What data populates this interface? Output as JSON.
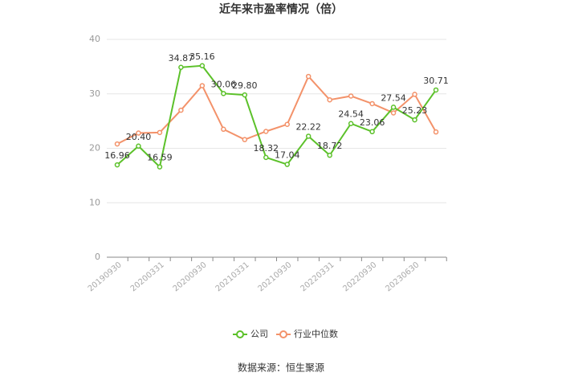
{
  "chart_data": {
    "type": "line",
    "title": "近年来市盈率情况（倍）",
    "categories": [
      "20190930",
      null,
      "20200331",
      null,
      "20200930",
      null,
      "20210331",
      null,
      "20210930",
      null,
      "20220331",
      null,
      "20220930",
      null,
      "20230630",
      null
    ],
    "series": [
      {
        "name": "公司",
        "color": "#5cc12a",
        "values": [
          16.96,
          20.4,
          16.59,
          34.87,
          35.16,
          30.06,
          29.8,
          18.32,
          17.04,
          22.22,
          18.72,
          24.54,
          23.06,
          27.54,
          25.23,
          30.71
        ],
        "value_labels": [
          "16.96",
          "20.40",
          "16.59",
          "34.87",
          "35.16",
          "30.06",
          "29.80",
          "18.32",
          "17.04",
          "22.22",
          "18.72",
          "24.54",
          "23.06",
          "27.54",
          "25.23",
          "30.71"
        ]
      },
      {
        "name": "行业中位数",
        "color": "#f3926a",
        "values": [
          20.8,
          22.8,
          22.9,
          27.0,
          31.5,
          23.5,
          21.6,
          23.1,
          24.4,
          33.2,
          28.9,
          29.6,
          28.2,
          26.5,
          29.9,
          23.0
        ]
      }
    ],
    "ylim": [
      0,
      40
    ],
    "yticks": [
      0,
      10,
      20,
      30,
      40
    ],
    "grid": true,
    "legend": "bottom",
    "source": "数据来源：恒生聚源"
  }
}
